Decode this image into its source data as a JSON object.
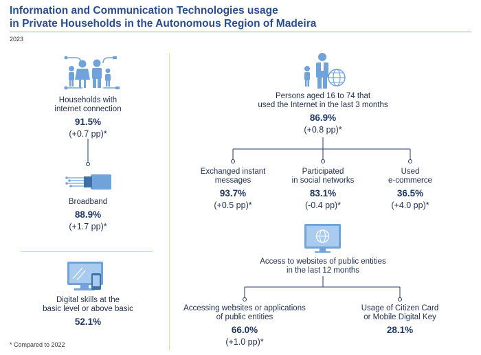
{
  "title": {
    "line1": "Information and Communication Technologies usage",
    "line2": "in Private Households in the Autonomous Region of Madeira"
  },
  "year": "2023",
  "left": {
    "households": {
      "label1": "Households with",
      "label2": "internet connection",
      "value": "91.5%",
      "change": "(+0.7 pp)*"
    },
    "broadband": {
      "label1": "Broadband",
      "value": "88.9%",
      "change": "(+1.7 pp)*"
    },
    "digital_skills": {
      "label1": "Digital skills at the",
      "label2": "basic level or above basic",
      "value": "52.1%"
    }
  },
  "right": {
    "persons": {
      "label1": "Persons aged 16 to 74 that",
      "label2": "used the Internet in the last 3 months",
      "value": "86.9%",
      "change": "(+0.8 pp)*"
    },
    "messages": {
      "label1": "Exchanged instant",
      "label2": "messages",
      "value": "93.7%",
      "change": "(+0.5 pp)*"
    },
    "social": {
      "label1": "Participated",
      "label2": "in social networks",
      "value": "83.1%",
      "change": "(-0.4 pp)*"
    },
    "ecommerce": {
      "label1": "Used",
      "label2": "e-commerce",
      "value": "36.5%",
      "change": "(+4.0 pp)*"
    },
    "public_access": {
      "label1": "Access to websites of public entities",
      "label2": "in the last 12 months"
    },
    "public_websites": {
      "label1": "Accessing websites or applications",
      "label2": "of public entities",
      "value": "66.0%",
      "change": "(+1.0 pp)*"
    },
    "citizen_card": {
      "label1": "Usage of Citizen Card",
      "label2": "or Mobile Digital Key",
      "value": "28.1%"
    }
  },
  "footnote": "* Compared to 2022",
  "colors": {
    "title": "#2a4d8f",
    "icon": "#6fa3d9",
    "icon_dark": "#3d6fa8",
    "separator": "#f5d98a"
  }
}
